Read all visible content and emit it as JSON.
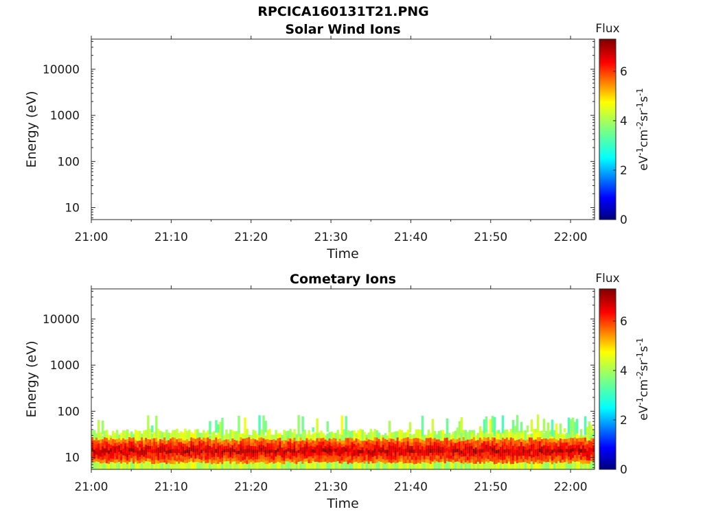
{
  "figure_title": "RPCICA160131T21.PNG",
  "chart_data": [
    {
      "type": "heatmap",
      "title": "Solar Wind Ions",
      "xlabel": "Time",
      "ylabel": "Energy (eV)",
      "y_scale": "log",
      "y_ticks": [
        "10",
        "100",
        "1000",
        "10000"
      ],
      "x_ticks": [
        "21:00",
        "21:10",
        "21:20",
        "21:30",
        "21:40",
        "21:50",
        "22:00"
      ],
      "x_range_minutes": [
        0,
        63
      ],
      "y_range": [
        5.5,
        45000
      ],
      "colorbar": {
        "title": "Flux",
        "label": "eV-1cm-2sr-1s-1",
        "range": [
          0,
          7.3
        ],
        "ticks": [
          "0",
          "2",
          "4",
          "6"
        ],
        "colormap": "jet"
      },
      "data": "empty"
    },
    {
      "type": "heatmap",
      "title": "Cometary Ions",
      "xlabel": "Time",
      "ylabel": "Energy (eV)",
      "y_scale": "log",
      "y_ticks": [
        "10",
        "100",
        "1000",
        "10000"
      ],
      "x_ticks": [
        "21:00",
        "21:10",
        "21:20",
        "21:30",
        "21:40",
        "21:50",
        "22:00"
      ],
      "x_range_minutes": [
        0,
        63
      ],
      "y_range": [
        5.5,
        45000
      ],
      "colorbar": {
        "title": "Flux",
        "label": "eV-1cm-2sr-1s-1",
        "range": [
          0,
          7.3
        ],
        "ticks": [
          "0",
          "2",
          "4",
          "6"
        ],
        "colormap": "jet"
      },
      "data": {
        "core_energy_eV": [
          8,
          25
        ],
        "core_flux": 6.4,
        "fringe_energy_eV": [
          5.5,
          35
        ],
        "fringe_flux": 4.5,
        "sporadic_max_energy_eV": 85,
        "sporadic_flux": 3.2
      }
    }
  ]
}
